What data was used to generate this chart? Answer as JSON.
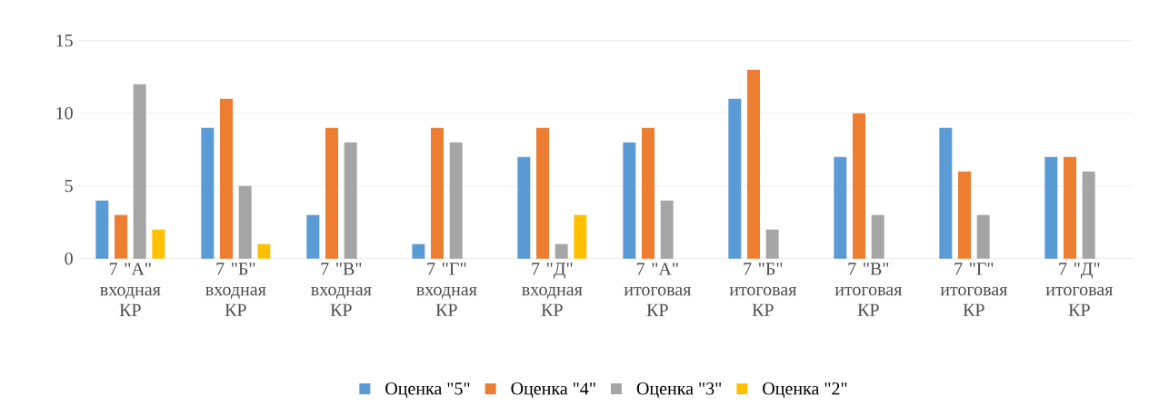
{
  "chart_data": {
    "type": "bar",
    "categories": [
      "7 \"А\" входная КР",
      "7 \"Б\" входная КР",
      "7 \"В\" входная КР",
      "7 \"Г\" входная КР",
      "7 \"Д\" входная КР",
      "7 \"А\" итоговая КР",
      "7 \"Б\" итоговая КР",
      "7 \"В\" итоговая КР",
      "7 \"Г\" итоговая КР",
      "7 \"Д\" итоговая КР"
    ],
    "series": [
      {
        "name": "Оценка \"5\"",
        "color": "#5b9bd5",
        "values": [
          4,
          9,
          3,
          1,
          7,
          8,
          11,
          7,
          9,
          7
        ]
      },
      {
        "name": "Оценка \"4\"",
        "color": "#ed7d31",
        "values": [
          3,
          11,
          9,
          9,
          9,
          9,
          13,
          10,
          6,
          7
        ]
      },
      {
        "name": "Оценка \"3\"",
        "color": "#a5a5a5",
        "values": [
          12,
          5,
          8,
          8,
          1,
          4,
          2,
          3,
          3,
          6
        ]
      },
      {
        "name": "Оценка \"2\"",
        "color": "#ffc000",
        "values": [
          2,
          1,
          null,
          null,
          3,
          null,
          null,
          null,
          null,
          null
        ]
      }
    ],
    "ylim": [
      0,
      15
    ],
    "yticks": [
      0,
      5,
      10,
      15
    ],
    "grid": "y",
    "legend": "bottom"
  }
}
